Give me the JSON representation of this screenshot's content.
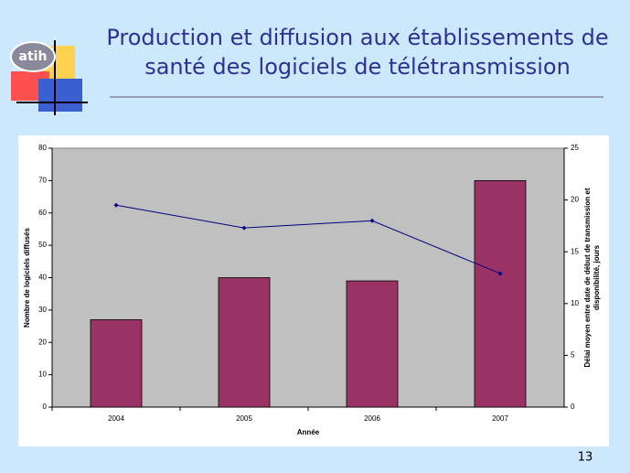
{
  "slide_title": [
    "Production et diffusion aux établissements de",
    "santé des logiciels de télétransmission"
  ],
  "logo_text": "atih",
  "page_number": "13",
  "chart_data": {
    "type": "bar",
    "categories": [
      "2004",
      "2005",
      "2006",
      "2007"
    ],
    "series": [
      {
        "type": "bar",
        "color": "#993366",
        "values": [
          27,
          40,
          39,
          70
        ]
      },
      {
        "type": "line",
        "axis": "y2",
        "color": "#000080",
        "values": [
          19.5,
          17.3,
          18.0,
          12.9
        ]
      }
    ],
    "xlabel": "Année",
    "ylabel": "Nombre de logiciels diffusés",
    "y2label": [
      "Délai moyen entre date de début de transmission et",
      "disponibilité, jours"
    ],
    "ylim": [
      0,
      80
    ],
    "yticks": [
      0,
      10,
      20,
      30,
      40,
      50,
      60,
      70,
      80
    ],
    "y2lim": [
      0,
      25
    ],
    "y2ticks": [
      0,
      5,
      10,
      15,
      20,
      25
    ],
    "plot_background": "#c0c0c0"
  }
}
